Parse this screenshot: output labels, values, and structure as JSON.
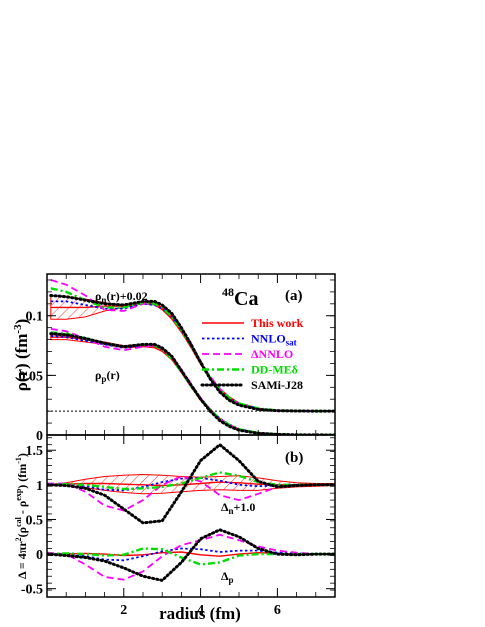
{
  "chart_data": {
    "type": "line",
    "nucleus": {
      "mass": "48",
      "symbol": "Ca"
    },
    "xlabel": "radius (fm)",
    "xlim": [
      0,
      7.5
    ],
    "xticks": [
      2,
      4,
      6
    ],
    "legend": {
      "placement": "right",
      "entries": [
        {
          "label": "This work",
          "color": "#ff0000",
          "style": "solid"
        },
        {
          "label": "NNLO",
          "sub": "sat",
          "color": "#0000ff",
          "style": "dotted"
        },
        {
          "label": "ΔNNLO",
          "color": "#ff00ff",
          "style": "dashed"
        },
        {
          "label": "DD-MEδ",
          "color": "#00dd00",
          "style": "dashdot"
        },
        {
          "label": "SAMi-J28",
          "color": "#000000",
          "style": "dense-dotted"
        }
      ]
    },
    "panels": [
      {
        "id": "a",
        "label": "(a)",
        "ylabel": {
          "main": "ρ(r) (fm",
          "sup": "-3",
          "end": ")"
        },
        "ylim": [
          0,
          0.135
        ],
        "yticks": [
          {
            "v": 0,
            "label": "0"
          },
          {
            "v": 0.05,
            "label": "0.05"
          },
          {
            "v": 0.1,
            "label": "0.1"
          }
        ],
        "reference_line": 0.02,
        "annotations": [
          {
            "text": "ρ",
            "sub": "n",
            "end": "(r)+0.02",
            "x": 1.1,
            "y": 0.118
          },
          {
            "text": "ρ",
            "sub": "p",
            "end": "(r)",
            "x": 1.1,
            "y": 0.046
          }
        ],
        "x": [
          0.1,
          0.5,
          1.0,
          1.5,
          2.0,
          2.5,
          2.8,
          3.0,
          3.25,
          3.5,
          3.75,
          4.0,
          4.25,
          4.5,
          4.75,
          5.0,
          5.5,
          6.0,
          6.5,
          7.0,
          7.5
        ],
        "band_upper": [
          [
            0.117,
            0.116,
            0.114,
            0.111,
            0.109,
            0.112,
            0.111,
            0.107,
            0.099,
            0.088,
            0.075,
            0.061,
            0.049,
            0.039,
            0.032,
            0.027,
            0.0225,
            0.0207,
            0.0202,
            0.0201,
            0.02
          ],
          [
            0.084,
            0.083,
            0.081,
            0.078,
            0.075,
            0.076,
            0.075,
            0.072,
            0.065,
            0.054,
            0.042,
            0.031,
            0.022,
            0.014,
            0.009,
            0.005,
            0.002,
            0.0008,
            0.0003,
            0.0001,
            0.0
          ]
        ],
        "band_lower": [
          [
            0.097,
            0.097,
            0.099,
            0.104,
            0.107,
            0.11,
            0.109,
            0.105,
            0.097,
            0.086,
            0.073,
            0.059,
            0.047,
            0.037,
            0.03,
            0.026,
            0.022,
            0.0205,
            0.0201,
            0.02,
            0.02
          ],
          [
            0.08,
            0.08,
            0.078,
            0.076,
            0.073,
            0.074,
            0.073,
            0.07,
            0.063,
            0.052,
            0.04,
            0.029,
            0.02,
            0.013,
            0.008,
            0.0045,
            0.0017,
            0.0006,
            0.0002,
            0.0001,
            0.0
          ]
        ],
        "series": [
          {
            "name": "This work",
            "values": [
              [
                0.107,
                0.107,
                0.107,
                0.108,
                0.108,
                0.111,
                0.11,
                0.106,
                0.098,
                0.087,
                0.074,
                0.06,
                0.048,
                0.038,
                0.031,
                0.0265,
                0.0222,
                0.0206,
                0.0202,
                0.0201,
                0.02
              ],
              [
                0.082,
                0.082,
                0.08,
                0.077,
                0.074,
                0.075,
                0.074,
                0.071,
                0.064,
                0.053,
                0.041,
                0.03,
                0.021,
                0.0135,
                0.0085,
                0.0048,
                0.0018,
                0.0007,
                0.0002,
                0.0001,
                0.0
              ]
            ]
          },
          {
            "name": "NNLO",
            "values": [
              [
                0.112,
                0.112,
                0.109,
                0.106,
                0.106,
                0.11,
                0.109,
                0.106,
                0.099,
                0.088,
                0.075,
                0.061,
                0.048,
                0.038,
                0.031,
                0.0265,
                0.0222,
                0.0206,
                0.0202,
                0.0201,
                0.02
              ],
              [
                0.083,
                0.082,
                0.079,
                0.076,
                0.073,
                0.075,
                0.075,
                0.072,
                0.065,
                0.054,
                0.042,
                0.031,
                0.0215,
                0.014,
                0.0088,
                0.005,
                0.0019,
                0.0007,
                0.0002,
                0.0001,
                0.0
              ]
            ]
          },
          {
            "name": "ΔNNLO",
            "values": [
              [
                0.13,
                0.126,
                0.117,
                0.105,
                0.104,
                0.11,
                0.111,
                0.108,
                0.101,
                0.09,
                0.077,
                0.062,
                0.049,
                0.039,
                0.031,
                0.026,
                0.022,
                0.0205,
                0.0201,
                0.02,
                0.02
              ],
              [
                0.089,
                0.087,
                0.081,
                0.074,
                0.071,
                0.074,
                0.075,
                0.073,
                0.066,
                0.055,
                0.043,
                0.031,
                0.021,
                0.0135,
                0.0082,
                0.0045,
                0.0016,
                0.0006,
                0.0002,
                0.0001,
                0.0
              ]
            ]
          },
          {
            "name": "DD-MEδ",
            "values": [
              [
                0.123,
                0.12,
                0.113,
                0.107,
                0.107,
                0.111,
                0.11,
                0.107,
                0.099,
                0.088,
                0.075,
                0.061,
                0.048,
                0.038,
                0.031,
                0.0265,
                0.0222,
                0.0206,
                0.0202,
                0.0201,
                0.02
              ],
              [
                0.086,
                0.085,
                0.081,
                0.077,
                0.074,
                0.076,
                0.075,
                0.072,
                0.064,
                0.053,
                0.041,
                0.03,
                0.021,
                0.0135,
                0.0085,
                0.0048,
                0.0018,
                0.0007,
                0.0002,
                0.0001,
                0.0
              ]
            ]
          },
          {
            "name": "SAMi-J28",
            "values": [
              [
                0.117,
                0.116,
                0.113,
                0.11,
                0.109,
                0.112,
                0.112,
                0.109,
                0.102,
                0.09,
                0.076,
                0.061,
                0.047,
                0.036,
                0.029,
                0.025,
                0.0215,
                0.0204,
                0.0201,
                0.02,
                0.02
              ],
              [
                0.085,
                0.084,
                0.081,
                0.077,
                0.074,
                0.076,
                0.076,
                0.073,
                0.066,
                0.054,
                0.042,
                0.03,
                0.02,
                0.012,
                0.0072,
                0.004,
                0.0014,
                0.0005,
                0.0002,
                0.0001,
                0.0
              ]
            ]
          }
        ]
      },
      {
        "id": "b",
        "label": "(b)",
        "ylabel": {
          "main": "Δ = 4πr",
          "sup2": "2",
          "mid": "(ρ",
          "sup_cal": "cal",
          "mid2": " - ρ",
          "sup_exp": "exp",
          "end": ") (fm",
          "sup_unit": "-1",
          "close": ")"
        },
        "ylim": [
          -0.62,
          1.72
        ],
        "yticks": [
          {
            "v": -0.5,
            "label": "-0.5"
          },
          {
            "v": 0,
            "label": "0"
          },
          {
            "v": 0.5,
            "label": "0.5"
          },
          {
            "v": 1,
            "label": "1"
          },
          {
            "v": 1.5,
            "label": "1.5"
          }
        ],
        "annotations": [
          {
            "text": "Δ",
            "sub": "n",
            "end": "+1.0",
            "x": 4.45,
            "y": 0.68
          },
          {
            "text": "Δ",
            "sub": "p",
            "end": "",
            "x": 4.45,
            "y": -0.2
          }
        ],
        "x": [
          0.0,
          0.5,
          1.0,
          1.5,
          2.0,
          2.5,
          3.0,
          3.5,
          4.0,
          4.5,
          5.0,
          5.5,
          6.0,
          6.5,
          7.0,
          7.5
        ],
        "band_upper": [
          [
            1.0,
            1.03,
            1.08,
            1.12,
            1.14,
            1.15,
            1.14,
            1.12,
            1.11,
            1.12,
            1.13,
            1.1,
            1.06,
            1.03,
            1.02,
            1.02
          ]
        ],
        "band_lower": [
          [
            1.0,
            0.99,
            0.96,
            0.92,
            0.89,
            0.87,
            0.88,
            0.9,
            0.92,
            0.93,
            0.92,
            0.92,
            0.95,
            0.97,
            0.98,
            0.99
          ]
        ],
        "series": [
          {
            "name": "This work",
            "values": [
              [
                1.0,
                1.01,
                1.02,
                1.02,
                1.01,
                1.0,
                0.99,
                1.0,
                1.02,
                1.04,
                1.03,
                1.01,
                1.0,
                1.0,
                1.0,
                1.0
              ],
              [
                0.0,
                0.0,
                0.01,
                0.0,
                -0.02,
                -0.01,
                0.02,
                0.03,
                -0.01,
                -0.03,
                0.0,
                0.02,
                0.01,
                0.0,
                0.0,
                0.0
              ]
            ]
          },
          {
            "name": "NNLO",
            "values": [
              [
                1.0,
                1.01,
                0.98,
                0.93,
                0.92,
                0.97,
                1.04,
                1.09,
                1.1,
                1.06,
                1.0,
                0.98,
                0.99,
                1.0,
                1.0,
                1.0
              ],
              [
                0.0,
                0.01,
                -0.03,
                -0.08,
                -0.09,
                -0.03,
                0.04,
                0.08,
                0.07,
                0.03,
                0.05,
                0.05,
                0.02,
                0.01,
                0.0,
                0.0
              ]
            ]
          },
          {
            "name": "ΔNNLO",
            "values": [
              [
                1.02,
                1.02,
                0.9,
                0.7,
                0.63,
                0.78,
                1.0,
                1.12,
                1.05,
                0.85,
                0.78,
                0.87,
                0.97,
                1.0,
                1.0,
                1.0
              ],
              [
                0.02,
                0.0,
                -0.15,
                -0.33,
                -0.37,
                -0.25,
                -0.03,
                0.13,
                0.2,
                0.28,
                0.2,
                0.11,
                0.05,
                0.02,
                0.0,
                0.0
              ]
            ]
          },
          {
            "name": "DD-MEδ",
            "values": [
              [
                1.0,
                1.01,
                1.0,
                0.97,
                0.94,
                0.95,
                0.97,
                1.02,
                1.1,
                1.18,
                1.13,
                1.04,
                1.0,
                1.0,
                1.0,
                1.0
              ],
              [
                0.0,
                0.01,
                0.0,
                -0.02,
                -0.01,
                0.08,
                0.07,
                -0.05,
                -0.15,
                -0.12,
                -0.02,
                0.0,
                0.0,
                0.0,
                0.0,
                0.0
              ]
            ]
          },
          {
            "name": "SAMi-J28",
            "values": [
              [
                1.0,
                0.99,
                0.95,
                0.85,
                0.65,
                0.45,
                0.48,
                0.9,
                1.35,
                1.58,
                1.35,
                1.05,
                0.97,
                0.99,
                1.0,
                1.0
              ],
              [
                0.0,
                -0.02,
                -0.05,
                -0.1,
                -0.2,
                -0.32,
                -0.38,
                -0.12,
                0.22,
                0.35,
                0.25,
                0.08,
                0.0,
                -0.01,
                0.0,
                0.0
              ]
            ]
          }
        ]
      }
    ]
  }
}
